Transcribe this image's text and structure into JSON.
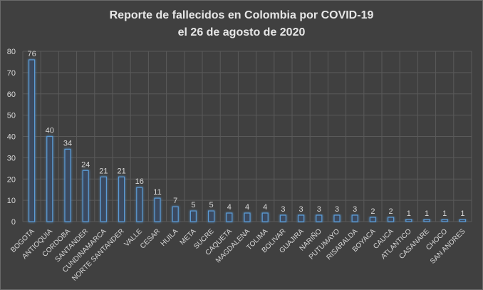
{
  "chart_data": {
    "type": "bar",
    "title_line1": "Reporte de fallecidos en Colombia por COVID-19",
    "title_line2": "el 26 de agosto de 2020",
    "categories": [
      "BOGOTA",
      "ANTIOQUIA",
      "CORDOBA",
      "SANTANDER",
      "CUNDINAMARCA",
      "NORTE SANTANDER",
      "VALLE",
      "CESAR",
      "HUILA",
      "META",
      "SUCRE",
      "CAQUETA",
      "MAGDALENA",
      "TOLIMA",
      "BOLIVAR",
      "GUAJIRA",
      "NARIÑO",
      "PUTUMAYO",
      "RISARALDA",
      "BOYACA",
      "CAUCA",
      "ATLANTICO",
      "CASANARE",
      "CHOCO",
      "SAN ANDRES"
    ],
    "values": [
      76,
      40,
      34,
      24,
      21,
      21,
      16,
      11,
      7,
      5,
      5,
      4,
      4,
      4,
      3,
      3,
      3,
      3,
      3,
      2,
      2,
      1,
      1,
      1,
      1
    ],
    "ylim": [
      0,
      80
    ],
    "yticks": [
      0,
      10,
      20,
      30,
      40,
      50,
      60,
      70,
      80
    ],
    "grid": true,
    "legend": "none",
    "bar_color": "#5b9bd5",
    "background": "#404040"
  }
}
